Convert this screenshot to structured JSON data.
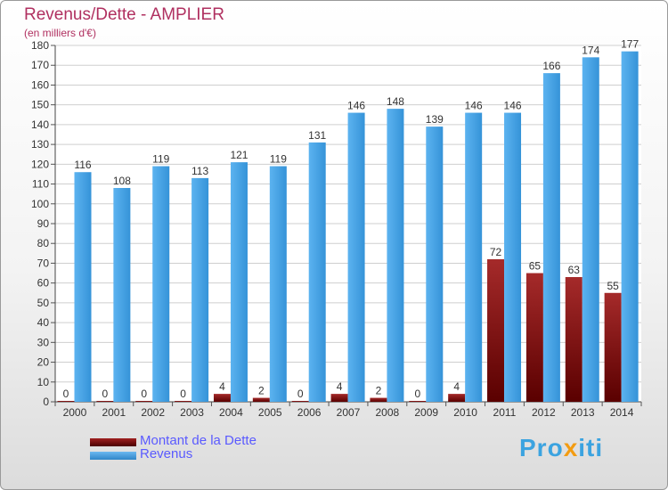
{
  "header": {
    "title": "Revenus/Dette - AMPLIER",
    "unit": "(en milliers d'€)"
  },
  "chart_data": {
    "type": "bar",
    "categories": [
      "2000",
      "2001",
      "2002",
      "2003",
      "2004",
      "2005",
      "2006",
      "2007",
      "2008",
      "2009",
      "2010",
      "2011",
      "2012",
      "2013",
      "2014"
    ],
    "series": [
      {
        "name": "Montant de la Dette",
        "color": "#6b0a0a",
        "values": [
          0,
          0,
          0,
          0,
          4,
          2,
          0,
          4,
          2,
          0,
          4,
          72,
          65,
          63,
          55
        ]
      },
      {
        "name": "Revenus",
        "color": "#3f9ee0",
        "values": [
          116,
          108,
          119,
          113,
          121,
          119,
          131,
          146,
          148,
          139,
          146,
          146,
          166,
          174,
          177
        ]
      }
    ],
    "ylim": [
      0,
      180
    ],
    "ytick_step": 10,
    "grid": true,
    "legend": "bottom-left"
  },
  "legend": {
    "items": [
      {
        "label": "Montant de la Dette",
        "color": "#6b0a0a"
      },
      {
        "label": "Revenus",
        "color": "#3f9ee0"
      }
    ]
  },
  "brand": {
    "text": "Proxiti"
  }
}
